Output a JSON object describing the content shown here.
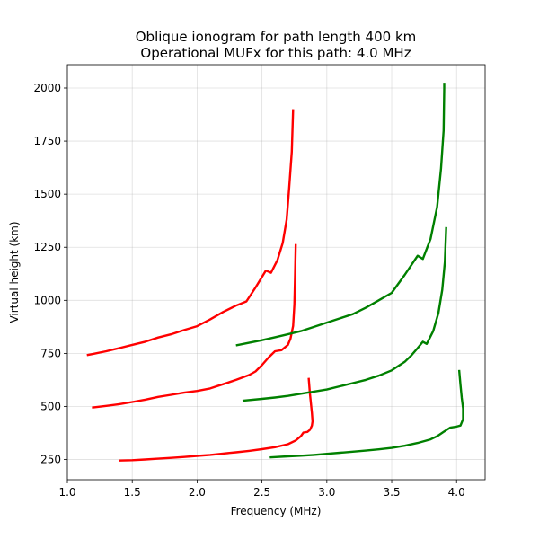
{
  "chart_data": {
    "type": "line",
    "title": "Oblique ionogram for path length 400 km",
    "subtitle": "Operational MUFx for this path: 4.0 MHz",
    "xlabel": "Frequency (MHz)",
    "ylabel": "Virtual height (km)",
    "xlim": [
      1.0,
      4.22
    ],
    "ylim": [
      155,
      2110
    ],
    "xticks": [
      1.0,
      1.5,
      2.0,
      2.5,
      3.0,
      3.5,
      4.0
    ],
    "xtick_labels": [
      "1.0",
      "1.5",
      "2.0",
      "2.5",
      "3.0",
      "3.5",
      "4.0"
    ],
    "yticks": [
      250,
      500,
      750,
      1000,
      1250,
      1500,
      1750,
      2000
    ],
    "ytick_labels": [
      "250",
      "500",
      "750",
      "1000",
      "1250",
      "1500",
      "1750",
      "2000"
    ],
    "grid": true,
    "colors": {
      "red": "#ff0000",
      "green": "#008000"
    },
    "series": [
      {
        "color": "#ff0000",
        "points": [
          [
            1.4,
            245
          ],
          [
            1.5,
            247
          ],
          [
            1.6,
            250
          ],
          [
            1.7,
            254
          ],
          [
            1.8,
            258
          ],
          [
            1.9,
            262
          ],
          [
            2.0,
            267
          ],
          [
            2.1,
            272
          ],
          [
            2.2,
            278
          ],
          [
            2.3,
            284
          ],
          [
            2.4,
            291
          ],
          [
            2.5,
            299
          ],
          [
            2.6,
            308
          ],
          [
            2.7,
            322
          ],
          [
            2.76,
            340
          ],
          [
            2.8,
            360
          ],
          [
            2.82,
            377
          ],
          [
            2.85,
            380
          ],
          [
            2.87,
            390
          ],
          [
            2.885,
            410
          ],
          [
            2.89,
            430
          ],
          [
            2.885,
            470
          ],
          [
            2.87,
            560
          ],
          [
            2.86,
            635
          ]
        ]
      },
      {
        "color": "#ff0000",
        "points": [
          [
            1.19,
            495
          ],
          [
            1.3,
            503
          ],
          [
            1.4,
            511
          ],
          [
            1.5,
            521
          ],
          [
            1.6,
            532
          ],
          [
            1.7,
            545
          ],
          [
            1.8,
            555
          ],
          [
            1.9,
            565
          ],
          [
            2.0,
            573
          ],
          [
            2.1,
            585
          ],
          [
            2.2,
            605
          ],
          [
            2.3,
            625
          ],
          [
            2.4,
            648
          ],
          [
            2.45,
            665
          ],
          [
            2.5,
            695
          ],
          [
            2.55,
            730
          ],
          [
            2.6,
            760
          ],
          [
            2.65,
            765
          ],
          [
            2.7,
            790
          ],
          [
            2.72,
            820
          ],
          [
            2.74,
            880
          ],
          [
            2.75,
            980
          ],
          [
            2.755,
            1100
          ],
          [
            2.76,
            1265
          ]
        ]
      },
      {
        "color": "#ff0000",
        "points": [
          [
            1.15,
            742
          ],
          [
            1.2,
            748
          ],
          [
            1.3,
            760
          ],
          [
            1.4,
            775
          ],
          [
            1.5,
            790
          ],
          [
            1.6,
            805
          ],
          [
            1.7,
            825
          ],
          [
            1.8,
            840
          ],
          [
            1.9,
            860
          ],
          [
            2.0,
            878
          ],
          [
            2.1,
            910
          ],
          [
            2.2,
            945
          ],
          [
            2.3,
            975
          ],
          [
            2.38,
            995
          ],
          [
            2.45,
            1060
          ],
          [
            2.53,
            1140
          ],
          [
            2.57,
            1130
          ],
          [
            2.62,
            1190
          ],
          [
            2.66,
            1270
          ],
          [
            2.69,
            1380
          ],
          [
            2.71,
            1530
          ],
          [
            2.73,
            1700
          ],
          [
            2.74,
            1900
          ]
        ]
      },
      {
        "color": "#008000",
        "points": [
          [
            2.56,
            260
          ],
          [
            2.7,
            265
          ],
          [
            2.8,
            268
          ],
          [
            2.9,
            272
          ],
          [
            3.0,
            277
          ],
          [
            3.1,
            282
          ],
          [
            3.2,
            287
          ],
          [
            3.3,
            292
          ],
          [
            3.4,
            298
          ],
          [
            3.5,
            305
          ],
          [
            3.6,
            315
          ],
          [
            3.7,
            328
          ],
          [
            3.8,
            345
          ],
          [
            3.85,
            360
          ],
          [
            3.9,
            380
          ],
          [
            3.95,
            400
          ],
          [
            4.0,
            405
          ],
          [
            4.03,
            410
          ],
          [
            4.05,
            440
          ],
          [
            4.05,
            490
          ],
          [
            4.04,
            540
          ],
          [
            4.03,
            600
          ],
          [
            4.02,
            672
          ]
        ]
      },
      {
        "color": "#008000",
        "points": [
          [
            2.35,
            527
          ],
          [
            2.5,
            536
          ],
          [
            2.6,
            542
          ],
          [
            2.7,
            550
          ],
          [
            2.8,
            560
          ],
          [
            2.9,
            570
          ],
          [
            3.0,
            580
          ],
          [
            3.1,
            595
          ],
          [
            3.2,
            610
          ],
          [
            3.3,
            625
          ],
          [
            3.4,
            645
          ],
          [
            3.5,
            670
          ],
          [
            3.6,
            710
          ],
          [
            3.65,
            740
          ],
          [
            3.7,
            775
          ],
          [
            3.74,
            805
          ],
          [
            3.77,
            795
          ],
          [
            3.82,
            855
          ],
          [
            3.86,
            940
          ],
          [
            3.89,
            1050
          ],
          [
            3.91,
            1180
          ],
          [
            3.92,
            1345
          ]
        ]
      },
      {
        "color": "#008000",
        "points": [
          [
            2.3,
            788
          ],
          [
            2.4,
            800
          ],
          [
            2.5,
            812
          ],
          [
            2.6,
            826
          ],
          [
            2.7,
            840
          ],
          [
            2.8,
            855
          ],
          [
            2.9,
            875
          ],
          [
            3.0,
            895
          ],
          [
            3.1,
            915
          ],
          [
            3.2,
            935
          ],
          [
            3.3,
            965
          ],
          [
            3.4,
            1000
          ],
          [
            3.5,
            1035
          ],
          [
            3.6,
            1120
          ],
          [
            3.7,
            1210
          ],
          [
            3.74,
            1195
          ],
          [
            3.8,
            1290
          ],
          [
            3.85,
            1440
          ],
          [
            3.88,
            1620
          ],
          [
            3.9,
            1800
          ],
          [
            3.905,
            2000
          ],
          [
            3.905,
            2025
          ]
        ]
      }
    ]
  }
}
